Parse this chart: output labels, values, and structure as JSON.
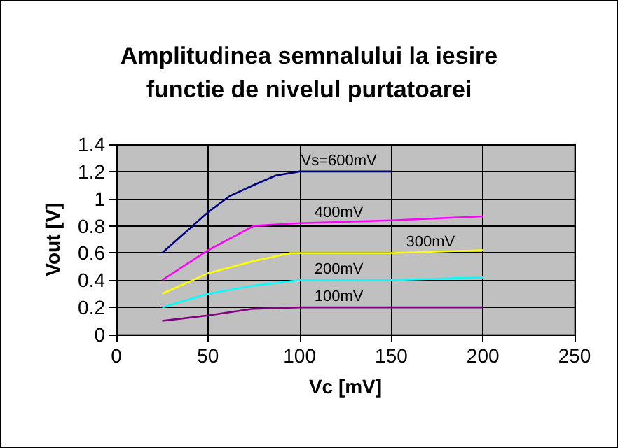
{
  "chart_data": {
    "type": "line",
    "title": "Amplitudinea semnalului la iesire\nfunctie de nivelul purtatoarei",
    "xlabel": "Vc [mV]",
    "ylabel": "Vout [V]",
    "xlim": [
      0,
      250
    ],
    "xticks": [
      0,
      50,
      100,
      150,
      200,
      250
    ],
    "ylim": [
      0,
      1.4
    ],
    "yticks": [
      0,
      0.2,
      0.4,
      0.6,
      0.8,
      1,
      1.2,
      1.4
    ],
    "grid": true,
    "marker": "none",
    "line_style": "solid",
    "series": [
      {
        "name": "Vs=600mV",
        "color": "#000080",
        "x": [
          25,
          40,
          50,
          62,
          75,
          87,
          100,
          150
        ],
        "values": [
          0.6,
          0.78,
          0.9,
          1.02,
          1.1,
          1.17,
          1.2,
          1.2
        ]
      },
      {
        "name": "400mV",
        "color": "#ff00ff",
        "x": [
          25,
          50,
          75,
          100,
          150,
          200
        ],
        "values": [
          0.4,
          0.62,
          0.8,
          0.82,
          0.84,
          0.87
        ]
      },
      {
        "name": "300mV",
        "color": "#ffff00",
        "x": [
          25,
          50,
          75,
          95,
          150,
          200
        ],
        "values": [
          0.3,
          0.45,
          0.54,
          0.6,
          0.6,
          0.62
        ]
      },
      {
        "name": "200mV",
        "color": "#00ffff",
        "x": [
          25,
          50,
          75,
          100,
          150,
          200
        ],
        "values": [
          0.2,
          0.3,
          0.36,
          0.4,
          0.4,
          0.42
        ]
      },
      {
        "name": "100mV",
        "color": "#800080",
        "x": [
          25,
          50,
          75,
          100,
          200
        ],
        "values": [
          0.1,
          0.14,
          0.19,
          0.2,
          0.2
        ]
      }
    ]
  }
}
